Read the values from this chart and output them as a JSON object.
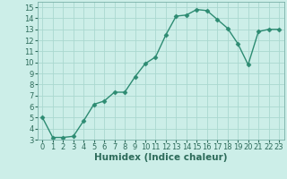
{
  "x": [
    0,
    1,
    2,
    3,
    4,
    5,
    6,
    7,
    8,
    9,
    10,
    11,
    12,
    13,
    14,
    15,
    16,
    17,
    18,
    19,
    20,
    21,
    22,
    23
  ],
  "y": [
    5.0,
    3.2,
    3.2,
    3.3,
    4.7,
    6.2,
    6.5,
    7.3,
    7.3,
    8.7,
    9.9,
    10.5,
    12.5,
    14.2,
    14.3,
    14.8,
    14.7,
    13.9,
    13.1,
    11.7,
    9.8,
    12.8,
    13.0,
    13.0
  ],
  "line_color": "#2d8b72",
  "marker": "D",
  "markersize": 2.5,
  "linewidth": 1.0,
  "xlabel": "Humidex (Indice chaleur)",
  "xlabel_fontsize": 7.5,
  "xlim": [
    -0.5,
    23.5
  ],
  "ylim": [
    3,
    15.5
  ],
  "yticks": [
    3,
    4,
    5,
    6,
    7,
    8,
    9,
    10,
    11,
    12,
    13,
    14,
    15
  ],
  "xticks": [
    0,
    1,
    2,
    3,
    4,
    5,
    6,
    7,
    8,
    9,
    10,
    11,
    12,
    13,
    14,
    15,
    16,
    17,
    18,
    19,
    20,
    21,
    22,
    23
  ],
  "bg_color": "#cceee8",
  "grid_color": "#aad8d0",
  "tick_fontsize": 6.0,
  "fig_bg": "#cceee8",
  "tick_color": "#2d6b5a"
}
